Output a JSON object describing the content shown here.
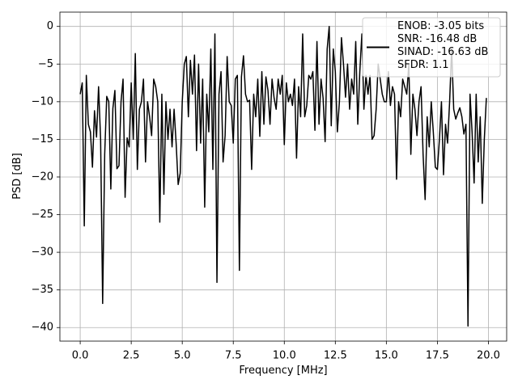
{
  "chart_data": {
    "type": "line",
    "xlabel": "Frequency [MHz]",
    "ylabel": "PSD [dB]",
    "x": [
      0,
      0.1,
      0.2,
      0.3,
      0.4,
      0.5,
      0.6,
      0.7,
      0.8,
      0.9,
      1,
      1.1,
      1.2,
      1.3,
      1.4,
      1.5,
      1.6,
      1.7,
      1.8,
      1.9,
      2,
      2.1,
      2.2,
      2.3,
      2.4,
      2.5,
      2.6,
      2.7,
      2.8,
      2.9,
      3,
      3.1,
      3.2,
      3.3,
      3.4,
      3.5,
      3.6,
      3.7,
      3.8,
      3.9,
      4,
      4.1,
      4.2,
      4.3,
      4.4,
      4.5,
      4.6,
      4.7,
      4.8,
      4.9,
      5,
      5.1,
      5.2,
      5.3,
      5.4,
      5.5,
      5.6,
      5.7,
      5.8,
      5.9,
      6,
      6.1,
      6.2,
      6.3,
      6.4,
      6.5,
      6.6,
      6.7,
      6.8,
      6.9,
      7,
      7.1,
      7.2,
      7.3,
      7.4,
      7.5,
      7.6,
      7.7,
      7.8,
      7.9,
      8,
      8.1,
      8.2,
      8.3,
      8.4,
      8.5,
      8.6,
      8.7,
      8.8,
      8.9,
      9,
      9.1,
      9.2,
      9.3,
      9.4,
      9.5,
      9.6,
      9.7,
      9.8,
      9.9,
      10,
      10.1,
      10.2,
      10.3,
      10.4,
      10.5,
      10.6,
      10.7,
      10.8,
      10.9,
      11,
      11.1,
      11.2,
      11.3,
      11.4,
      11.5,
      11.6,
      11.7,
      11.8,
      11.9,
      12,
      12.1,
      12.2,
      12.3,
      12.4,
      12.5,
      12.6,
      12.7,
      12.8,
      12.9,
      13,
      13.1,
      13.2,
      13.3,
      13.4,
      13.5,
      13.6,
      13.7,
      13.8,
      13.9,
      14,
      14.1,
      14.2,
      14.3,
      14.4,
      14.5,
      14.6,
      14.7,
      14.8,
      14.9,
      15,
      15.1,
      15.2,
      15.3,
      15.4,
      15.5,
      15.6,
      15.7,
      15.8,
      15.9,
      16,
      16.1,
      16.2,
      16.3,
      16.4,
      16.5,
      16.6,
      16.7,
      16.8,
      16.9,
      17,
      17.1,
      17.2,
      17.3,
      17.4,
      17.5,
      17.6,
      17.7,
      17.8,
      17.9,
      18,
      18.1,
      18.2,
      18.3,
      18.4,
      18.5,
      18.6,
      18.7,
      18.8,
      18.9,
      19,
      19.1,
      19.2,
      19.3,
      19.4,
      19.5,
      19.6,
      19.7,
      19.8,
      19.9
    ],
    "series": [
      {
        "name": "ENOB: -3.05 bits\nSNR: -16.48 dB\nSINAD: -16.63 dB\nSFDR: 1.1",
        "color": "#000000",
        "values": [
          -9,
          -7.5,
          -26.5,
          -6.5,
          -13,
          -14,
          -18.7,
          -11.2,
          -14.7,
          -8,
          -15,
          -36.8,
          -17,
          -9.3,
          -10,
          -21.6,
          -10.9,
          -8.5,
          -18.9,
          -18.5,
          -10,
          -7,
          -22.7,
          -14.8,
          -16,
          -7.5,
          -15,
          -3.6,
          -19,
          -11,
          -10,
          -7,
          -18,
          -10,
          -12,
          -14.5,
          -7,
          -8,
          -10,
          -26,
          -9,
          -22.3,
          -10,
          -15,
          -11,
          -16,
          -11,
          -15.5,
          -21,
          -19.5,
          -10,
          -5,
          -4,
          -12,
          -4.5,
          -9,
          -3.8,
          -16.5,
          -5,
          -15.5,
          -7,
          -24,
          -9,
          -14,
          -3,
          -19,
          -1,
          -34,
          -9,
          -6,
          -18,
          -14.5,
          -4,
          -10,
          -10.5,
          -15.5,
          -7,
          -6.5,
          -32.4,
          -6.7,
          -3.9,
          -9,
          -10,
          -9.8,
          -19,
          -9,
          -12,
          -7,
          -14.6,
          -6,
          -13,
          -6.7,
          -8.5,
          -13,
          -7,
          -9.5,
          -11,
          -7,
          -9,
          -6.5,
          -15.7,
          -7.5,
          -10,
          -9,
          -10.5,
          -7,
          -17.5,
          -8,
          -12,
          -1,
          -12,
          -10.5,
          -6.5,
          -7,
          -6,
          -13.8,
          -2,
          -13,
          -7,
          -9.5,
          -15.3,
          -3,
          0,
          -13.2,
          -3,
          -6,
          -14,
          -10,
          -1.5,
          -5,
          -9.4,
          -5,
          -11,
          -7,
          -9,
          -2,
          -13,
          -6,
          -1,
          -11,
          -6.5,
          -9,
          -6.5,
          -15,
          -14.5,
          -11,
          -5,
          -7,
          -9,
          -10,
          -10,
          -6,
          -10.5,
          -8,
          -9,
          -20.3,
          -10,
          -12,
          -7,
          -8,
          -9,
          -5,
          -17,
          -9,
          -11,
          -14.5,
          -10,
          -8,
          -17,
          -23,
          -12,
          -16,
          -10,
          -14,
          -18.7,
          -19,
          -15,
          -10,
          -19.7,
          -13,
          -15.5,
          -10,
          -3,
          -11,
          -12.3,
          -11.5,
          -10.8,
          -12,
          -14.3,
          -13,
          -39.8,
          -9,
          -14,
          -20.8,
          -9,
          -18,
          -12,
          -23.5,
          -15,
          -9.5
        ]
      }
    ],
    "xlim": [
      -0.995,
      20.895
    ],
    "ylim": [
      -41.8,
      1.9
    ],
    "xticks": [
      {
        "value": 0,
        "label": "0.0"
      },
      {
        "value": 2.5,
        "label": "2.5"
      },
      {
        "value": 5,
        "label": "5.0"
      },
      {
        "value": 7.5,
        "label": "7.5"
      },
      {
        "value": 10,
        "label": "10.0"
      },
      {
        "value": 12.5,
        "label": "12.5"
      },
      {
        "value": 15,
        "label": "15.0"
      },
      {
        "value": 17.5,
        "label": "17.5"
      },
      {
        "value": 20,
        "label": "20.0"
      }
    ],
    "yticks": [
      0,
      {
        "value": -5,
        "label": "−5"
      },
      {
        "value": -10,
        "label": "−10"
      },
      {
        "value": -15,
        "label": "−15"
      },
      {
        "value": -20,
        "label": "−20"
      },
      {
        "value": -25,
        "label": "−25"
      },
      {
        "value": -30,
        "label": "−30"
      },
      {
        "value": -35,
        "label": "−35"
      },
      {
        "value": -40,
        "label": "−40"
      }
    ],
    "grid": true,
    "legend": "upper right"
  }
}
